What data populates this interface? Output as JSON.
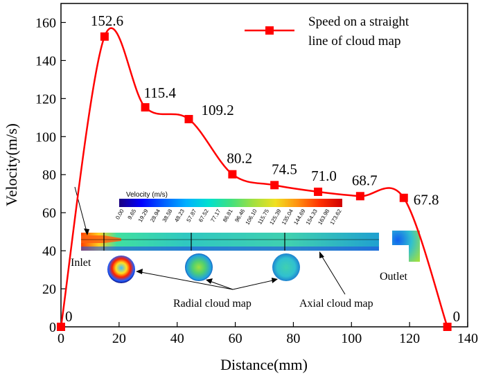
{
  "chart_data": {
    "type": "line",
    "xlabel": "Distance(mm)",
    "ylabel": "Velocity(m/s)",
    "xlim": [
      0,
      140
    ],
    "ylim": [
      0,
      170
    ],
    "xticks": [
      "0",
      "20",
      "40",
      "60",
      "80",
      "100",
      "120",
      "140"
    ],
    "yticks": [
      "0",
      "20",
      "40",
      "60",
      "80",
      "100",
      "120",
      "140",
      "160"
    ],
    "grid": false,
    "legend_position": "top-right",
    "series": [
      {
        "name": "Speed on a straight line of cloud map",
        "name_lines": [
          "Speed on a straight",
          "line of cloud map"
        ],
        "color": "#ff0000",
        "marker": "square",
        "x": [
          0,
          15,
          29,
          44,
          59,
          73.5,
          88.5,
          103,
          118,
          133
        ],
        "y": [
          0,
          152.6,
          115.4,
          109.2,
          80.2,
          74.5,
          71.0,
          68.7,
          67.8,
          0
        ],
        "labels": [
          "0",
          "152.6",
          "115.4",
          "109.2",
          "80.2",
          "74.5",
          "71.0",
          "68.7",
          "67.8",
          "0"
        ]
      }
    ]
  },
  "inset": {
    "colorbar_title": "Velocity (m/s)",
    "colorbar_ticks": [
      "0.00",
      "9.65",
      "19.29",
      "28.94",
      "38.58",
      "48.23",
      "57.87",
      "67.52",
      "77.17",
      "86.81",
      "96.46",
      "106.10",
      "115.75",
      "125.39",
      "135.04",
      "144.69",
      "154.33",
      "163.98",
      "173.62"
    ],
    "colorbar_colors": [
      "#1a0080",
      "#0000ff",
      "#0060ff",
      "#00b0ff",
      "#00e0d0",
      "#40e080",
      "#a0e040",
      "#f0e020",
      "#ff9010",
      "#ff3000",
      "#d00000"
    ],
    "inlet_label": "Inlet",
    "outlet_label": "Outlet",
    "radial_label": "Radial cloud map",
    "axial_label": "Axial cloud map"
  }
}
